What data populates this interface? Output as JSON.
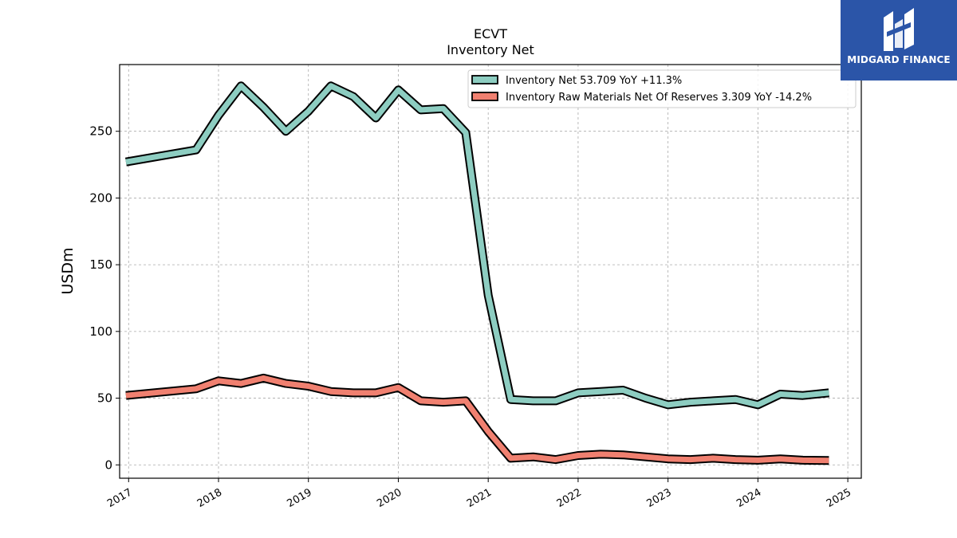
{
  "chart_data": {
    "type": "line",
    "title": "ECVT",
    "subtitle": "Inventory Net",
    "ylabel": "USDm",
    "ylim": [
      -10,
      300
    ],
    "xlim": [
      2016.9,
      2025.15
    ],
    "yticks": [
      0,
      50,
      100,
      150,
      200,
      250
    ],
    "ytick_labels": [
      "0",
      "50",
      "100",
      "150",
      "200",
      "250"
    ],
    "xticks": [
      2017,
      2018,
      2019,
      2020,
      2021,
      2022,
      2023,
      2024,
      2025
    ],
    "xtick_labels": [
      "2017",
      "2018",
      "2019",
      "2020",
      "2021",
      "2022",
      "2023",
      "2024",
      "2025"
    ],
    "grid": true,
    "legend_position": "top-right",
    "series": [
      {
        "name": "Inventory Net  53.709 YoY +11.3%",
        "color": "#8dcdc1",
        "x": [
          2016.97,
          2017.75,
          2018.0,
          2018.25,
          2018.5,
          2018.75,
          2019.0,
          2019.25,
          2019.5,
          2019.75,
          2020.0,
          2020.25,
          2020.5,
          2020.75,
          2021.0,
          2021.25,
          2021.5,
          2021.75,
          2022.0,
          2022.25,
          2022.5,
          2022.75,
          2023.0,
          2023.25,
          2023.5,
          2023.75,
          2024.0,
          2024.25,
          2024.5,
          2024.79
        ],
        "y": [
          227,
          236,
          262,
          284,
          268,
          250,
          265,
          284,
          276,
          260,
          281,
          266,
          267,
          249,
          127,
          49,
          48,
          48,
          54,
          55,
          56,
          50,
          45,
          47,
          48,
          49,
          45,
          53,
          52,
          54
        ]
      },
      {
        "name": "Inventory Raw Materials Net Of Reserves  3.309 YoY -14.2%",
        "color": "#f08070",
        "x": [
          2016.97,
          2017.75,
          2018.0,
          2018.25,
          2018.5,
          2018.75,
          2019.0,
          2019.25,
          2019.5,
          2019.75,
          2020.0,
          2020.25,
          2020.5,
          2020.75,
          2021.0,
          2021.25,
          2021.5,
          2021.75,
          2022.0,
          2022.25,
          2022.5,
          2022.75,
          2023.0,
          2023.25,
          2023.5,
          2023.75,
          2024.0,
          2024.25,
          2024.5,
          2024.79
        ],
        "y": [
          52,
          57,
          63,
          61,
          65,
          61,
          59,
          55,
          54,
          54,
          58,
          48,
          47,
          48,
          25,
          5,
          6,
          4,
          7,
          8,
          7.5,
          6,
          4.5,
          4,
          5,
          4,
          3.5,
          4.5,
          3.5,
          3.3
        ]
      }
    ]
  },
  "logo": {
    "text": "MIDGARD FINANCE"
  }
}
